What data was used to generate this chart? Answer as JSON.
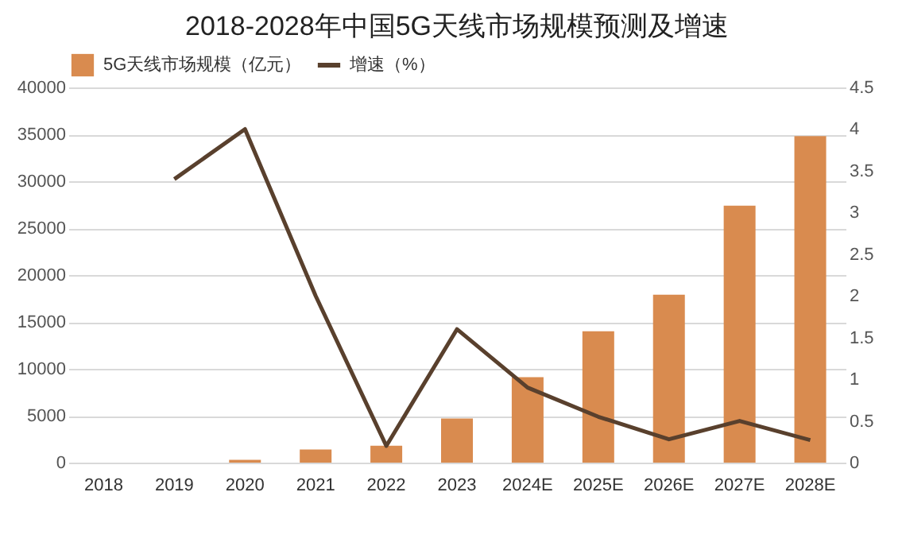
{
  "chart_data": {
    "type": "bar",
    "title": "2018-2028年中国5G天线市场规模预测及增速",
    "categories": [
      "2018",
      "2019",
      "2020",
      "2021",
      "2022",
      "2023",
      "2024E",
      "2025E",
      "2026E",
      "2027E",
      "2028E"
    ],
    "series": [
      {
        "name": "5G天线市场规模（亿元）",
        "color": "#d98b4f",
        "values": [
          0,
          0,
          300,
          1400,
          1800,
          4700,
          9100,
          14000,
          17900,
          27400,
          34800
        ]
      },
      {
        "name": "增速（%）",
        "type": "line",
        "axis": "y2",
        "color": "#59402d",
        "values": [
          null,
          3.4,
          4.0,
          2.0,
          0.2,
          1.6,
          0.9,
          0.55,
          0.28,
          0.5,
          0.27
        ]
      }
    ],
    "ylim": [
      0,
      40000
    ],
    "yticks": [
      0,
      5000,
      10000,
      15000,
      20000,
      25000,
      30000,
      35000,
      40000
    ],
    "y2lim": [
      0,
      4.5
    ],
    "y2ticks": [
      0,
      0.5,
      1,
      1.5,
      2,
      2.5,
      3,
      3.5,
      4,
      4.5
    ],
    "grid": "y",
    "legend": "top",
    "marker": "none"
  }
}
